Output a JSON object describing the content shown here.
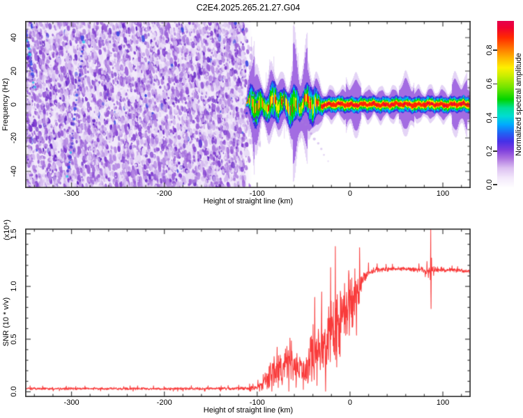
{
  "title": "C2E4.2025.265.21.27.G04",
  "axis_color": "#3f3f3f",
  "chart_data": [
    {
      "type": "heatmap",
      "title": "C2E4.2025.265.21.27.G04",
      "xlabel": "Height of straight line (km)",
      "ylabel": "Frequency (Hz)",
      "xlim": [
        -350,
        130
      ],
      "ylim": [
        -50,
        50
      ],
      "x_major_ticks": [
        -300,
        -200,
        -100,
        0,
        100
      ],
      "x_tick_labels": [
        "-300",
        "-200",
        "-100",
        "0",
        "100"
      ],
      "x_minor_step": 20,
      "y_major_ticks": [
        40,
        20,
        0,
        -20,
        -40
      ],
      "y_tick_labels": [
        "40",
        "20",
        "0",
        "-20",
        "-40"
      ],
      "y_minor_step": 5,
      "colorbar": {
        "label": "Normalized spectral amplitude",
        "ticks": [
          0.0,
          0.2,
          0.4,
          0.6,
          0.8
        ],
        "tick_labels": [
          "0.0",
          "0.2",
          "0.4",
          "0.6",
          "0.8"
        ],
        "colormap": [
          [
            0.0,
            "#ffffff"
          ],
          [
            0.06,
            "#f3e9fb"
          ],
          [
            0.12,
            "#dcc0f1"
          ],
          [
            0.18,
            "#ab70e0"
          ],
          [
            0.23,
            "#7b3cdd"
          ],
          [
            0.28,
            "#4530e8"
          ],
          [
            0.33,
            "#2064f4"
          ],
          [
            0.38,
            "#00aaff"
          ],
          [
            0.43,
            "#00dcd2"
          ],
          [
            0.48,
            "#00e096"
          ],
          [
            0.53,
            "#00d400"
          ],
          [
            0.6,
            "#6fe400"
          ],
          [
            0.67,
            "#c8ee00"
          ],
          [
            0.72,
            "#fdf000"
          ],
          [
            0.78,
            "#ffb400"
          ],
          [
            0.84,
            "#ff7000"
          ],
          [
            0.9,
            "#ff2a00"
          ],
          [
            0.96,
            "#f00030"
          ],
          [
            1.0,
            "#e4004e"
          ]
        ]
      },
      "features": {
        "noise_field": {
          "x_range": [
            -350,
            -106
          ],
          "background": "#f2eafa",
          "speckle_colors": [
            "#e8dcf6",
            "#d3b8ef",
            "#b58ae3",
            "#9a5fd8",
            "#7e3bcf",
            "#6526c4",
            "#3c46e0"
          ],
          "speckle_weights": [
            0.25,
            0.22,
            0.2,
            0.17,
            0.1,
            0.05,
            0.01
          ],
          "count": 6200
        },
        "streaks": [
          {
            "from_km_hz": [
              -349,
              44
            ],
            "to_km_hz": [
              -340,
              10
            ]
          },
          {
            "from_km_hz": [
              -287,
              40
            ],
            "to_km_hz": [
              -304,
              -43
            ]
          }
        ],
        "signal_band": {
          "x_start": -113,
          "messy_until": -28,
          "center_hz": 0,
          "widths_hz": {
            "purple": 6.4,
            "blue": 4.7,
            "cyan": 3.6,
            "green": 2.8,
            "yellow": 2.0,
            "red": 1.25
          }
        },
        "descending_arc": {
          "from": [
            -55,
            -8
          ],
          "ctrl": [
            -40,
            -17
          ],
          "to": [
            -24,
            -34
          ]
        },
        "underband_fuzz": {
          "x_range": [
            -130,
            -96
          ],
          "hz_range": [
            -6,
            -28
          ]
        }
      }
    },
    {
      "type": "line",
      "xlabel": "Height of straight line (km)",
      "ylabel": "SNR (10 * v/v)",
      "scale_note": "(x10⁴)",
      "xlim": [
        -350,
        130
      ],
      "ylim": [
        -0.05,
        1.55
      ],
      "x_major_ticks": [
        -300,
        -200,
        -100,
        0,
        100
      ],
      "x_tick_labels": [
        "-300",
        "-200",
        "-100",
        "0",
        "100"
      ],
      "x_minor_step": 20,
      "y_major_ticks": [
        0.0,
        0.5,
        1.0,
        1.5
      ],
      "y_tick_labels": [
        "0.0",
        "0.5",
        "1.0",
        "1.5"
      ],
      "y_minor_step": 0.1,
      "color": "#f93b3b",
      "envelope": [
        [
          -350,
          0.03,
          0.012
        ],
        [
          -160,
          0.03,
          0.013
        ],
        [
          -110,
          0.033,
          0.016
        ],
        [
          -100,
          0.04,
          0.03
        ],
        [
          -95,
          0.07,
          0.06
        ],
        [
          -90,
          0.13,
          0.11
        ],
        [
          -84,
          0.2,
          0.17
        ],
        [
          -78,
          0.24,
          0.2
        ],
        [
          -72,
          0.27,
          0.22
        ],
        [
          -66,
          0.3,
          0.24
        ],
        [
          -60,
          0.26,
          0.22
        ],
        [
          -54,
          0.2,
          0.18
        ],
        [
          -49,
          0.16,
          0.14
        ],
        [
          -45,
          0.22,
          0.18
        ],
        [
          -41,
          0.45,
          0.38
        ],
        [
          -37,
          0.3,
          0.26
        ],
        [
          -33,
          0.35,
          0.28
        ],
        [
          -29,
          0.45,
          0.33
        ],
        [
          -25,
          0.5,
          0.33
        ],
        [
          -21,
          0.55,
          0.35
        ],
        [
          -17,
          0.62,
          0.38
        ],
        [
          -13,
          0.66,
          0.4
        ],
        [
          -9,
          0.72,
          0.36
        ],
        [
          -5,
          0.8,
          0.33
        ],
        [
          -1,
          0.82,
          0.34
        ],
        [
          3,
          0.9,
          0.28
        ],
        [
          7,
          0.97,
          0.22
        ],
        [
          11,
          1.04,
          0.15
        ],
        [
          15,
          1.09,
          0.09
        ],
        [
          19,
          1.12,
          0.05
        ],
        [
          25,
          1.15,
          0.03
        ],
        [
          35,
          1.16,
          0.025
        ],
        [
          50,
          1.17,
          0.02
        ],
        [
          65,
          1.16,
          0.022
        ],
        [
          75,
          1.16,
          0.025
        ],
        [
          82,
          1.15,
          0.035
        ],
        [
          86,
          1.16,
          0.045
        ],
        [
          92,
          1.16,
          0.03
        ],
        [
          100,
          1.16,
          0.022
        ],
        [
          115,
          1.15,
          0.02
        ],
        [
          130,
          1.145,
          0.02
        ]
      ],
      "spike": {
        "km": 87,
        "peak": 1.54,
        "trough": 0.79
      }
    }
  ]
}
